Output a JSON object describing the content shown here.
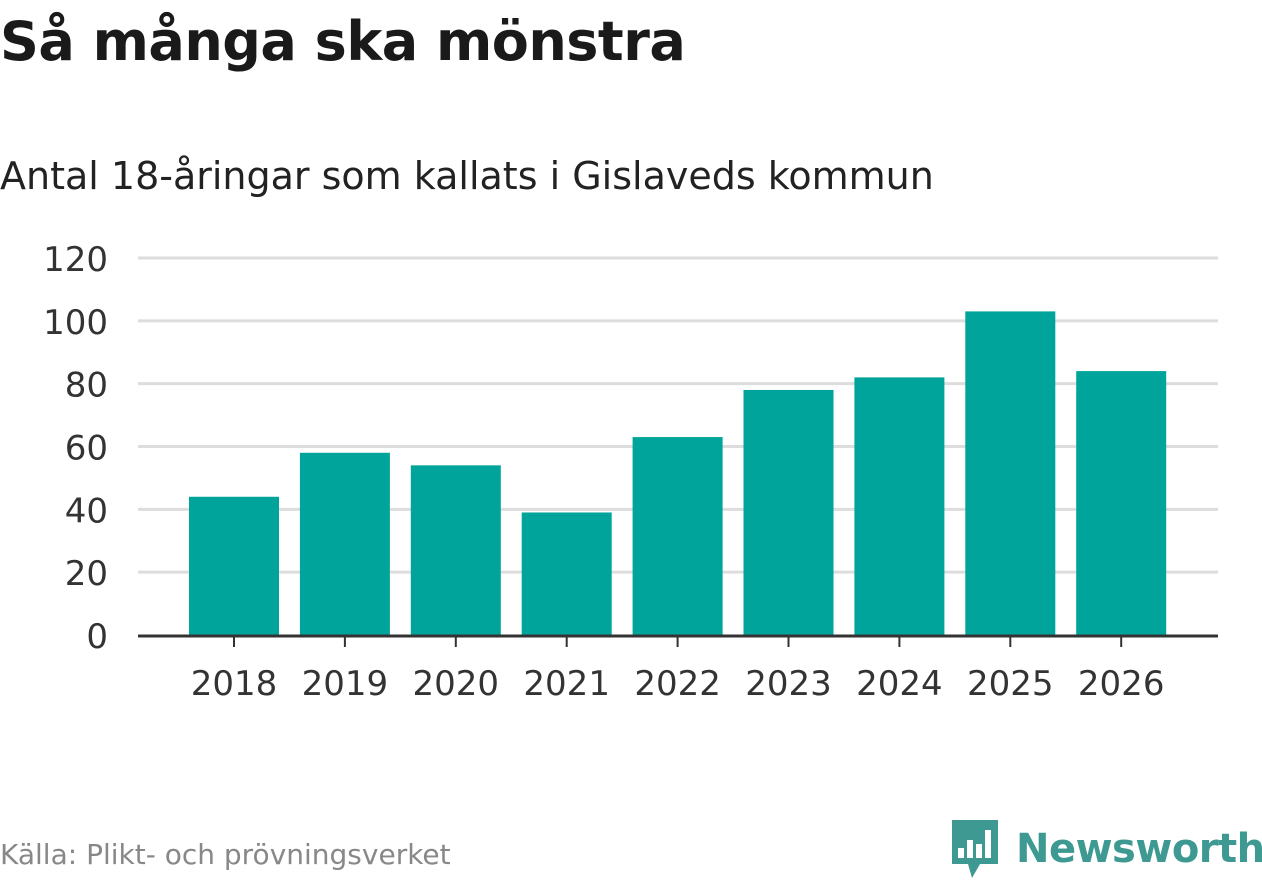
{
  "header": {
    "title": "Så många ska mönstra",
    "subtitle": "Antal 18-åringar som kallats i Gislaveds kommun"
  },
  "footer": {
    "source": "Källa: Plikt- och prövningsverket",
    "brand": "Newsworthy"
  },
  "colors": {
    "bar": "#00a49a",
    "grid": "#dddddd",
    "axis": "#333333",
    "brand": "#3d9991"
  },
  "chart_data": {
    "type": "bar",
    "title": "Så många ska mönstra",
    "subtitle": "Antal 18-åringar som kallats i Gislaveds kommun",
    "categories": [
      "2018",
      "2019",
      "2020",
      "2021",
      "2022",
      "2023",
      "2024",
      "2025",
      "2026"
    ],
    "values": [
      44,
      58,
      54,
      39,
      63,
      78,
      82,
      103,
      84
    ],
    "yticks": [
      "0",
      "20",
      "40",
      "60",
      "80",
      "100",
      "120"
    ],
    "ylim": [
      0,
      120
    ],
    "xlabel": "",
    "ylabel": "",
    "grid": true
  }
}
